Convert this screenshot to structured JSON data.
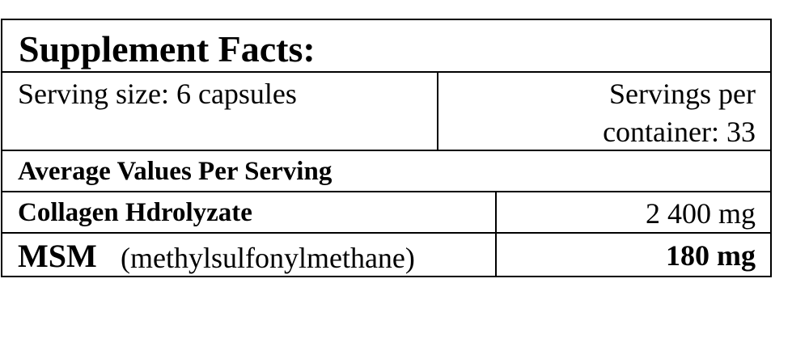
{
  "title": "Supplement Facts:",
  "serving_size": "Serving size: 6 capsules",
  "servings_per_container_line1": "Servings per",
  "servings_per_container_line2": "container: 33",
  "section_heading": "Average Values Per Serving",
  "ingredients": [
    {
      "name": "Collagen Hdrolyzate",
      "note": "",
      "amount": "2 400 mg"
    },
    {
      "name": "MSM",
      "note": "(methylsulfonylmethane)",
      "amount": "180 mg"
    }
  ]
}
